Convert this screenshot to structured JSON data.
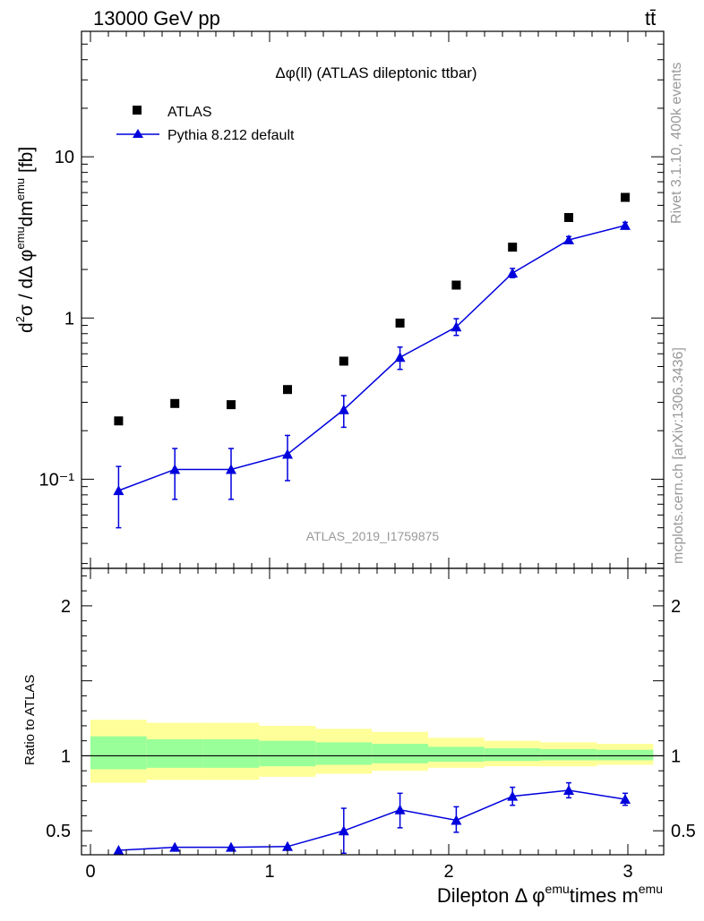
{
  "header": {
    "left": "13000 GeV pp",
    "right": "tt̄"
  },
  "side_labels": {
    "rivet": "Rivet 3.1.10,  400k events",
    "mcplots": "mcplots.cern.ch [arXiv:1306.3436]"
  },
  "chart_data": [
    {
      "type": "scatter",
      "title": "Δφ(ll) (ATLAS dileptonic ttbar)",
      "watermark": "ATLAS_2019_I1759875",
      "ylabel": "d²σ / dΔφ^emu dm^emu [fb]",
      "yscale": "log",
      "ylim": [
        0.028,
        60
      ],
      "xlim": [
        -0.05,
        3.2
      ],
      "y_ticks": [
        {
          "value": 0.1,
          "label": "10⁻¹"
        },
        {
          "value": 1,
          "label": "1"
        },
        {
          "value": 10,
          "label": "10"
        }
      ],
      "series": [
        {
          "name": "ATLAS",
          "marker": "square",
          "color": "#000000",
          "points": [
            {
              "x": 0.157,
              "y": 0.23
            },
            {
              "x": 0.471,
              "y": 0.295
            },
            {
              "x": 0.785,
              "y": 0.29
            },
            {
              "x": 1.1,
              "y": 0.36
            },
            {
              "x": 1.414,
              "y": 0.54
            },
            {
              "x": 1.728,
              "y": 0.93
            },
            {
              "x": 2.042,
              "y": 1.6
            },
            {
              "x": 2.356,
              "y": 2.75
            },
            {
              "x": 2.67,
              "y": 4.2
            },
            {
              "x": 2.985,
              "y": 5.6
            }
          ]
        },
        {
          "name": "Pythia 8.212 default",
          "marker": "triangle",
          "color": "#0000dd",
          "points": [
            {
              "x": 0.157,
              "y": 0.085,
              "lo": 0.05,
              "hi": 0.12
            },
            {
              "x": 0.471,
              "y": 0.115,
              "lo": 0.075,
              "hi": 0.155
            },
            {
              "x": 0.785,
              "y": 0.115,
              "lo": 0.075,
              "hi": 0.155
            },
            {
              "x": 1.1,
              "y": 0.143,
              "lo": 0.098,
              "hi": 0.187
            },
            {
              "x": 1.414,
              "y": 0.27,
              "lo": 0.21,
              "hi": 0.33
            },
            {
              "x": 1.728,
              "y": 0.57,
              "lo": 0.48,
              "hi": 0.66
            },
            {
              "x": 2.042,
              "y": 0.88,
              "lo": 0.78,
              "hi": 0.99
            },
            {
              "x": 2.356,
              "y": 1.9,
              "lo": 1.78,
              "hi": 2.03
            },
            {
              "x": 2.67,
              "y": 3.05,
              "lo": 2.9,
              "hi": 3.2
            },
            {
              "x": 2.985,
              "y": 3.75,
              "lo": 3.6,
              "hi": 3.92
            }
          ]
        }
      ]
    },
    {
      "type": "scatter",
      "ylabel": "Ratio to ATLAS",
      "xlabel": "Dilepton Δ φ^emu times m^emu",
      "ylim": [
        0.34,
        2.25
      ],
      "xlim": [
        -0.05,
        3.2
      ],
      "x_ticks": [
        {
          "value": 0,
          "label": "0"
        },
        {
          "value": 1,
          "label": "1"
        },
        {
          "value": 2,
          "label": "2"
        },
        {
          "value": 3,
          "label": "3"
        }
      ],
      "y_ticks": [
        {
          "value": 0.5,
          "label": "0.5"
        },
        {
          "value": 1,
          "label": "1"
        },
        {
          "value": 2,
          "label": "2"
        }
      ],
      "uncertainty_bands": {
        "edges": [
          0,
          0.314,
          0.628,
          0.942,
          1.257,
          1.571,
          1.885,
          2.199,
          2.513,
          2.827,
          3.142
        ],
        "outer": [
          [
            0.82,
            1.24
          ],
          [
            0.84,
            1.22
          ],
          [
            0.84,
            1.22
          ],
          [
            0.86,
            1.2
          ],
          [
            0.88,
            1.18
          ],
          [
            0.9,
            1.16
          ],
          [
            0.92,
            1.12
          ],
          [
            0.93,
            1.1
          ],
          [
            0.93,
            1.09
          ],
          [
            0.94,
            1.08
          ]
        ],
        "inner": [
          [
            0.91,
            1.13
          ],
          [
            0.92,
            1.11
          ],
          [
            0.92,
            1.11
          ],
          [
            0.93,
            1.1
          ],
          [
            0.94,
            1.09
          ],
          [
            0.95,
            1.08
          ],
          [
            0.96,
            1.06
          ],
          [
            0.965,
            1.05
          ],
          [
            0.97,
            1.045
          ],
          [
            0.97,
            1.04
          ]
        ],
        "outer_color": "#ffff99",
        "inner_color": "#99ff99"
      },
      "series": [
        {
          "name": "Pythia 8.212 default / ATLAS",
          "marker": "triangle",
          "color": "#0000dd",
          "points": [
            {
              "x": 0.157,
              "y": 0.37
            },
            {
              "x": 0.471,
              "y": 0.39
            },
            {
              "x": 0.785,
              "y": 0.39
            },
            {
              "x": 1.1,
              "y": 0.395
            },
            {
              "x": 1.414,
              "y": 0.5,
              "lo": 0.35,
              "hi": 0.65
            },
            {
              "x": 1.728,
              "y": 0.64,
              "lo": 0.52,
              "hi": 0.75
            },
            {
              "x": 2.042,
              "y": 0.57,
              "lo": 0.49,
              "hi": 0.66
            },
            {
              "x": 2.356,
              "y": 0.73,
              "lo": 0.67,
              "hi": 0.79
            },
            {
              "x": 2.67,
              "y": 0.77,
              "lo": 0.72,
              "hi": 0.82
            },
            {
              "x": 2.985,
              "y": 0.71,
              "lo": 0.67,
              "hi": 0.75
            }
          ]
        }
      ]
    }
  ]
}
